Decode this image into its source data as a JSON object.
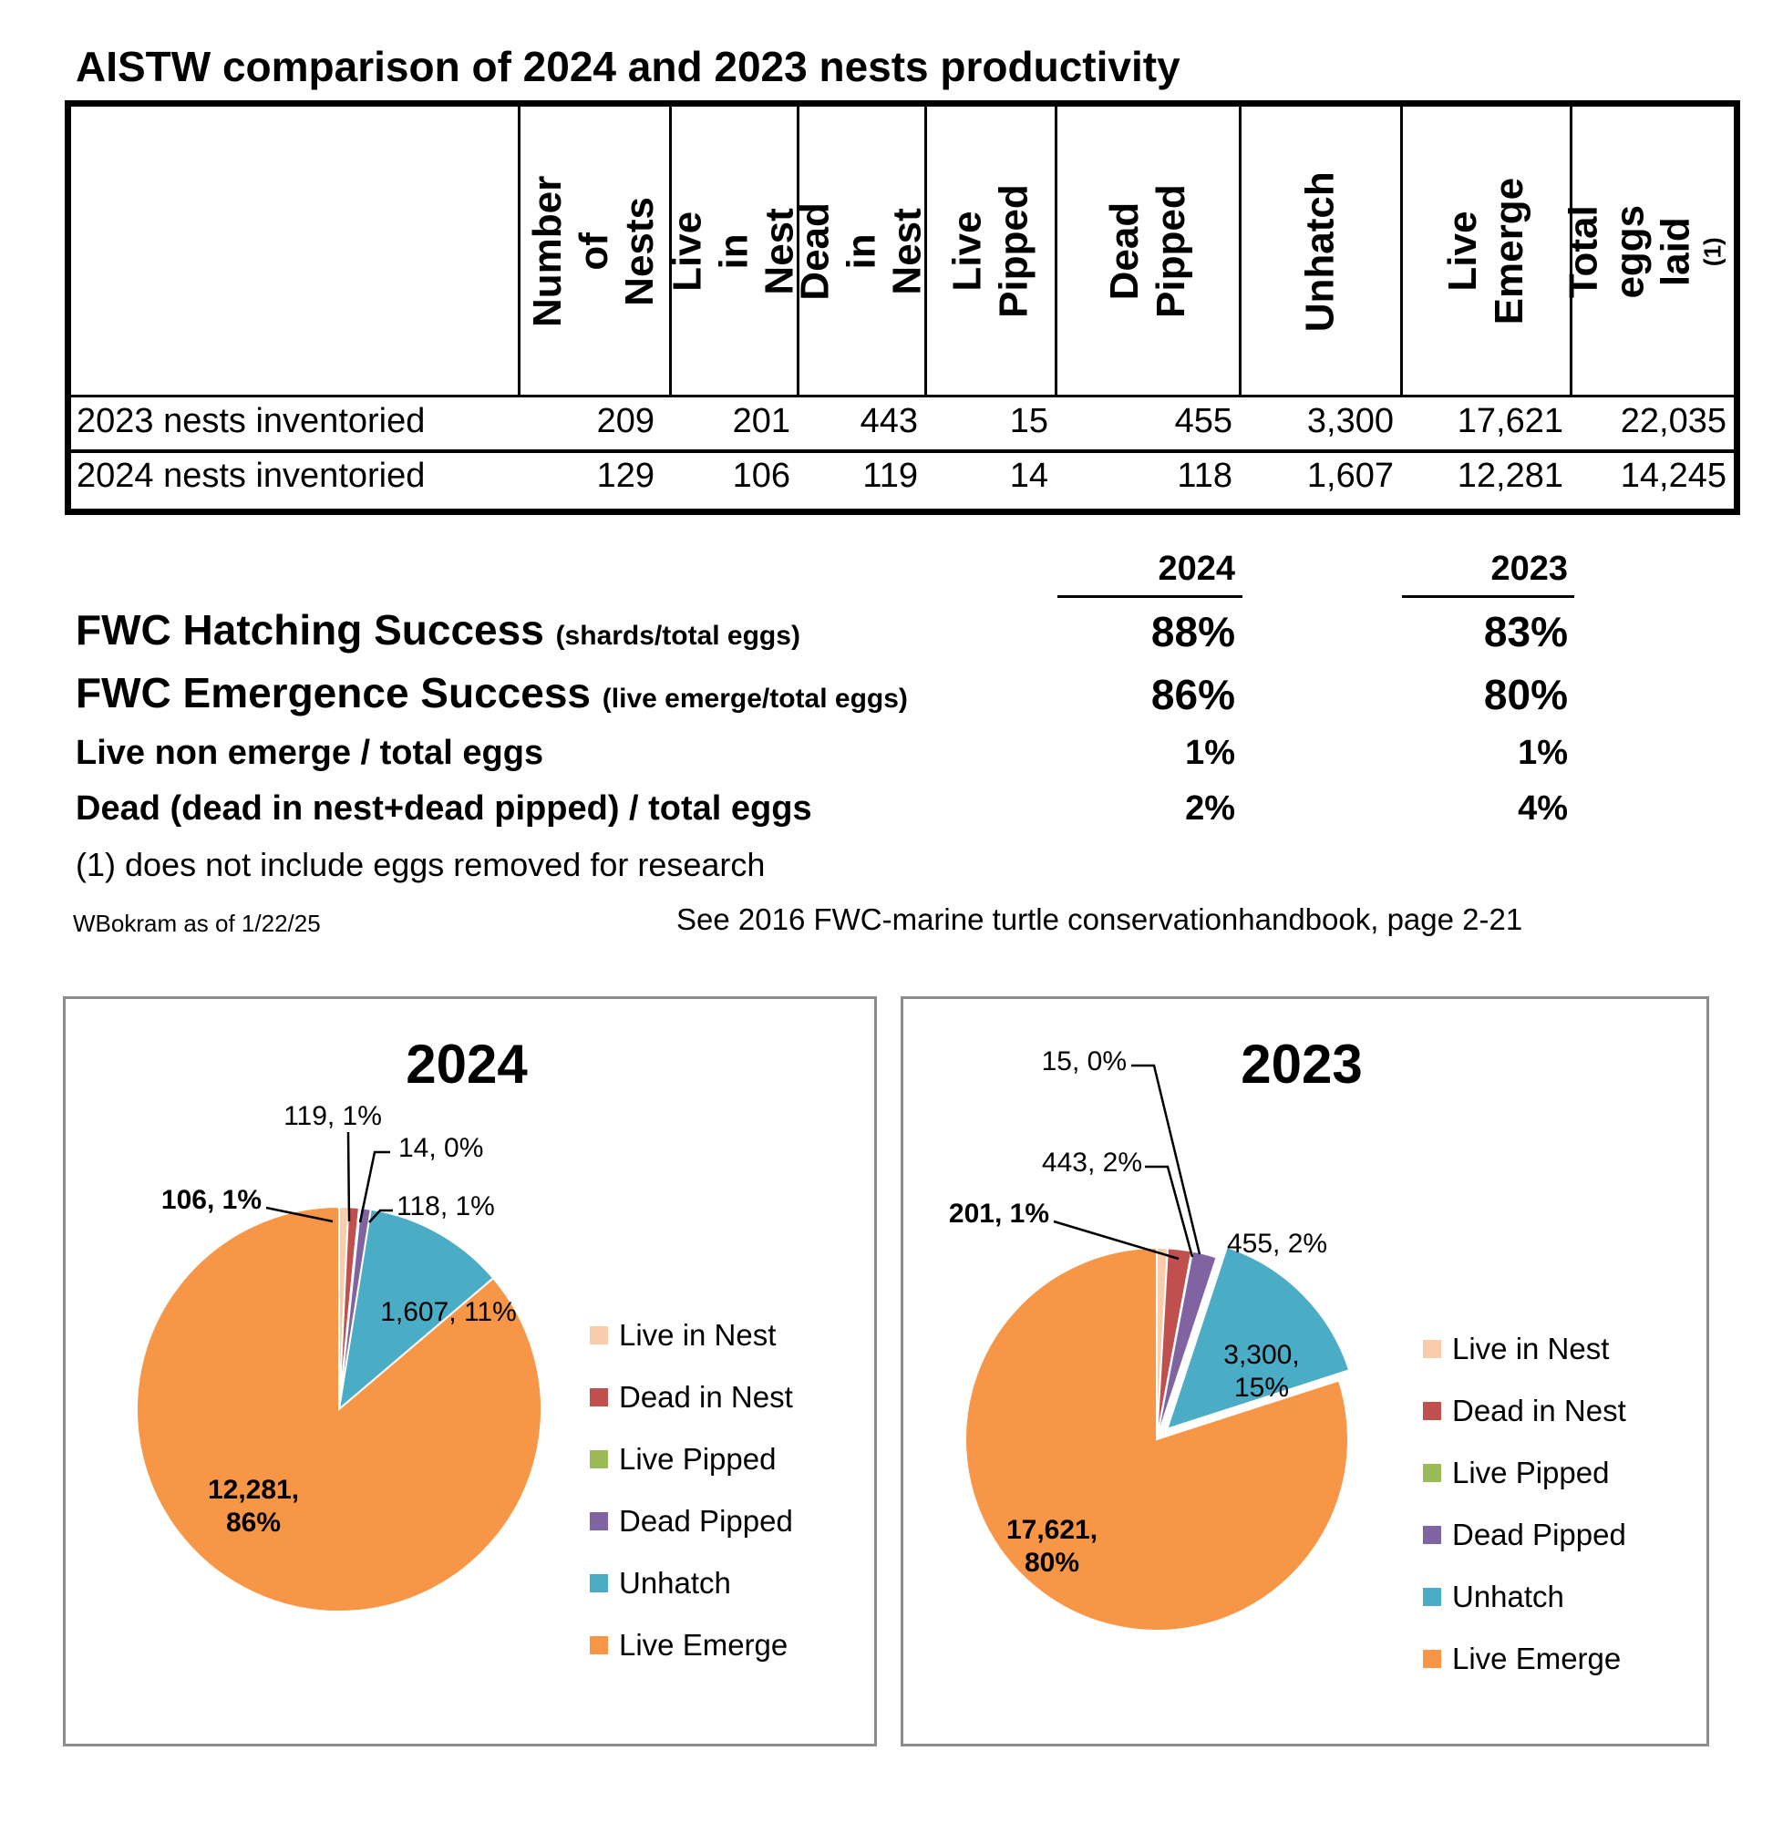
{
  "title": "AISTW comparison of 2024 and 2023 nests productivity",
  "table": {
    "columns": [
      "Number of\nNests",
      "Live in Nest",
      "Dead in Nest",
      "Live Pipped",
      "Dead Pipped",
      "Unhatch",
      "Live Emerge",
      "Total eggs\nlaid"
    ],
    "last_column_superscript": "(1)",
    "rows": [
      {
        "label": "2023 nests inventoried",
        "values": [
          "209",
          "201",
          "443",
          "15",
          "455",
          "3,300",
          "17,621",
          "22,035"
        ]
      },
      {
        "label": "2024 nests inventoried",
        "values": [
          "129",
          "106",
          "119",
          "14",
          "118",
          "1,607",
          "12,281",
          "14,245"
        ]
      }
    ]
  },
  "summary": {
    "year_headers": [
      "2024",
      "2023"
    ],
    "rows": [
      {
        "label": "FWC Hatching Success",
        "note": "(shards/total eggs)",
        "v2024": "88%",
        "v2023": "83%"
      },
      {
        "label": "FWC Emergence Success",
        "note": "(live emerge/total eggs)",
        "v2024": "86%",
        "v2023": "80%"
      },
      {
        "label": "Live non emerge / total eggs",
        "note": "",
        "v2024": "1%",
        "v2023": "1%"
      },
      {
        "label": "Dead (dead in nest+dead pipped) / total eggs",
        "note": "",
        "v2024": "2%",
        "v2023": "4%"
      }
    ],
    "footnote": "(1) does not include eggs removed for research",
    "author": "WBokram as of 1/22/25",
    "reference": "See 2016 FWC-marine turtle conservationhandbook, page 2-21"
  },
  "chart_data": [
    {
      "type": "pie",
      "title": "2024",
      "categories": [
        "Live in Nest",
        "Dead in Nest",
        "Live Pipped",
        "Dead Pipped",
        "Unhatch",
        "Live Emerge"
      ],
      "values": [
        106,
        119,
        14,
        118,
        1607,
        12281
      ],
      "data_labels": [
        "106, 1%",
        "119, 1%",
        "14, 0%",
        "118, 1%",
        "1,607, 11%",
        "12,281,\n86%"
      ],
      "colors": [
        "#F9CDAC",
        "#C0504D",
        "#9BBB59",
        "#8064A2",
        "#4BACC6",
        "#F79646"
      ],
      "legend": "right"
    },
    {
      "type": "pie",
      "title": "2023",
      "categories": [
        "Live in Nest",
        "Dead in Nest",
        "Live Pipped",
        "Dead Pipped",
        "Unhatch",
        "Live Emerge"
      ],
      "values": [
        201,
        443,
        15,
        455,
        3300,
        17621
      ],
      "data_labels": [
        "201, 1%",
        "443, 2%",
        "15, 0%",
        "455, 2%",
        "3,300,\n15%",
        "17,621,\n80%"
      ],
      "colors": [
        "#F9CDAC",
        "#C0504D",
        "#9BBB59",
        "#8064A2",
        "#4BACC6",
        "#F79646"
      ],
      "legend": "right"
    }
  ]
}
